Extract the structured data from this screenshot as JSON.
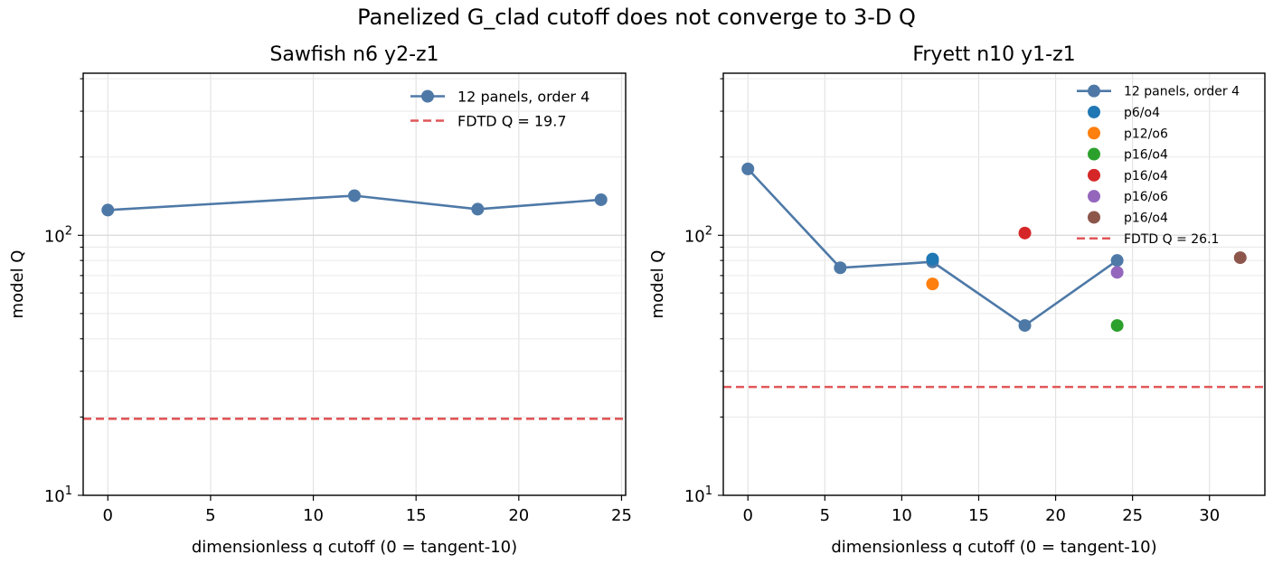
{
  "figure": {
    "suptitle": "Panelized G_clad cutoff does not converge to 3-D Q"
  },
  "chart_data": [
    {
      "type": "line",
      "title": "Sawfish n6 y2-z1",
      "xlabel": "dimensionless q cutoff (0 = tangent-10)",
      "ylabel": "model Q",
      "yscale": "log",
      "xlim": [
        -1.2,
        25.2
      ],
      "ylim": [
        10,
        420
      ],
      "xticks": [
        0,
        5,
        10,
        15,
        20,
        25
      ],
      "xtick_labels": [
        "0",
        "5",
        "10",
        "15",
        "20",
        "25"
      ],
      "yticks": [
        10,
        100
      ],
      "ytick_labels": [
        "10^1",
        "10^2"
      ],
      "grid": true,
      "legend_position": "upper right",
      "series": [
        {
          "name": "12 panels, order 4",
          "kind": "line-marker",
          "color": "#4e79a7",
          "x": [
            0,
            12,
            18,
            24
          ],
          "y": [
            125,
            142,
            126,
            137
          ]
        }
      ],
      "hlines": [
        {
          "name": "FDTD Q = 19.7",
          "y": 19.7,
          "color": "#e15759",
          "style": "dashed"
        }
      ]
    },
    {
      "type": "line",
      "title": "Fryett n10 y1-z1",
      "xlabel": "dimensionless q cutoff (0 = tangent-10)",
      "ylabel": "model Q",
      "yscale": "log",
      "xlim": [
        -1.6,
        33.6
      ],
      "ylim": [
        10,
        420
      ],
      "xticks": [
        0,
        5,
        10,
        15,
        20,
        25,
        30
      ],
      "xtick_labels": [
        "0",
        "5",
        "10",
        "15",
        "20",
        "25",
        "30"
      ],
      "yticks": [
        10,
        100
      ],
      "ytick_labels": [
        "10^1",
        "10^2"
      ],
      "grid": true,
      "legend_position": "upper right",
      "series": [
        {
          "name": "12 panels, order 4",
          "kind": "line-marker",
          "color": "#4e79a7",
          "x": [
            0,
            6,
            12,
            18,
            24
          ],
          "y": [
            180,
            75,
            79,
            45,
            80
          ]
        },
        {
          "name": "p6/o4",
          "kind": "scatter",
          "color": "#1f77b4",
          "x": [
            12
          ],
          "y": [
            81
          ]
        },
        {
          "name": "p12/o6",
          "kind": "scatter",
          "color": "#ff7f0e",
          "x": [
            12
          ],
          "y": [
            65
          ]
        },
        {
          "name": "p16/o4",
          "kind": "scatter",
          "color": "#2ca02c",
          "x": [
            24
          ],
          "y": [
            45
          ]
        },
        {
          "name": "p16/o4",
          "kind": "scatter",
          "color": "#d62728",
          "x": [
            18
          ],
          "y": [
            102
          ]
        },
        {
          "name": "p16/o6",
          "kind": "scatter",
          "color": "#9467bd",
          "x": [
            24
          ],
          "y": [
            72
          ]
        },
        {
          "name": "p16/o4",
          "kind": "scatter",
          "color": "#8c564b",
          "x": [
            32
          ],
          "y": [
            82
          ]
        }
      ],
      "hlines": [
        {
          "name": "FDTD Q = 26.1",
          "y": 26.1,
          "color": "#e15759",
          "style": "dashed"
        }
      ]
    }
  ]
}
